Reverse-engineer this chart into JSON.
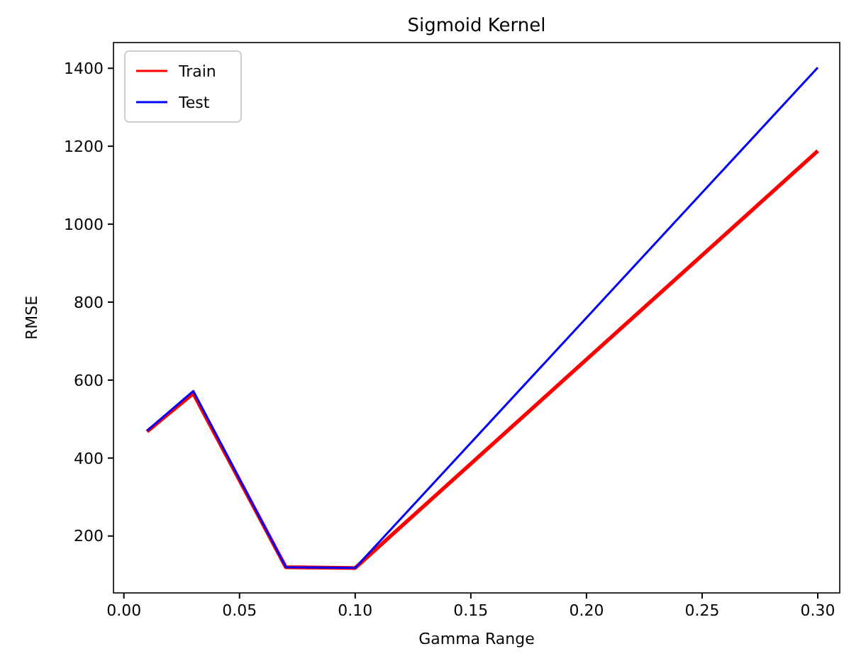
{
  "chart_data": {
    "type": "line",
    "title": "Sigmoid Kernel",
    "xlabel": "Gamma Range",
    "ylabel": "RMSE",
    "x": [
      0.01,
      0.03,
      0.07,
      0.1,
      0.3
    ],
    "series": [
      {
        "name": "Train",
        "color": "#ff0000",
        "values": [
          468,
          566,
          120,
          118,
          1188
        ]
      },
      {
        "name": "Test",
        "color": "#0000ff",
        "values": [
          470,
          572,
          120,
          118,
          1402
        ]
      }
    ],
    "xlim": [
      -0.0045,
      0.3095
    ],
    "xticks": [
      {
        "value": 0,
        "label": "0.00"
      },
      {
        "value": 0.05,
        "label": "0.05"
      },
      {
        "value": 0.1,
        "label": "0.10"
      },
      {
        "value": 0.15,
        "label": "0.15"
      },
      {
        "value": 0.2,
        "label": "0.20"
      },
      {
        "value": 0.25,
        "label": "0.25"
      },
      {
        "value": 0.3,
        "label": "0.30"
      }
    ],
    "ylim": [
      54,
      1466
    ],
    "yticks": [
      200,
      400,
      600,
      800,
      1000,
      1200,
      1400
    ],
    "legend": "top left",
    "grid": false,
    "marker": "none",
    "line_style": "solid"
  }
}
